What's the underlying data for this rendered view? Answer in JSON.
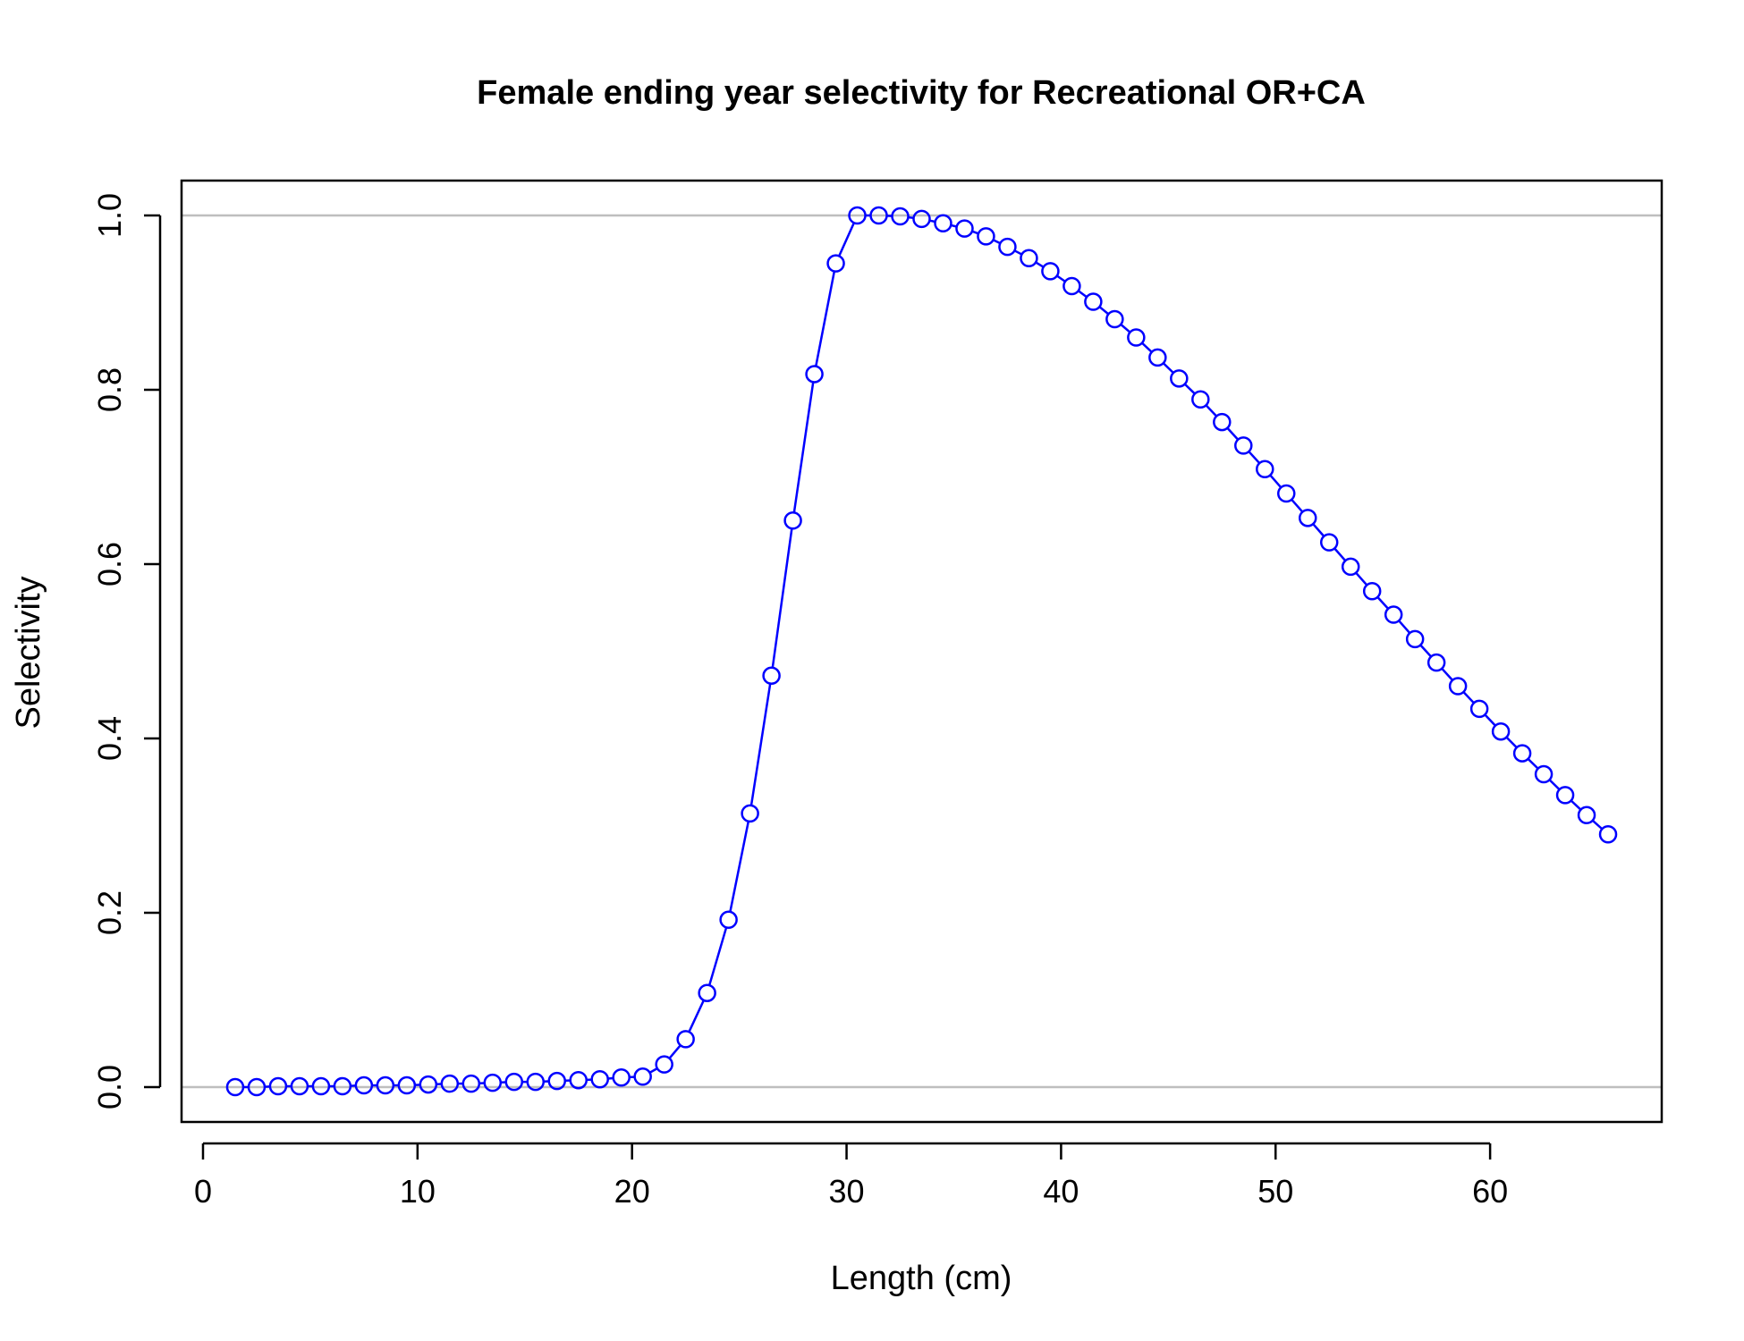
{
  "chart_data": {
    "type": "line",
    "title": "Female ending year selectivity for Recreational OR+CA",
    "xlabel": "Length (cm)",
    "ylabel": "Selectivity",
    "xlim": [
      -1,
      68
    ],
    "ylim": [
      -0.04,
      1.04
    ],
    "x_ticks": [
      0,
      10,
      20,
      30,
      40,
      50,
      60
    ],
    "x_tick_labels": [
      "0",
      "10",
      "20",
      "30",
      "40",
      "50",
      "60"
    ],
    "y_ticks": [
      0,
      0.2,
      0.4,
      0.6,
      0.8,
      1.0
    ],
    "y_tick_labels": [
      "0.0",
      "0.2",
      "0.4",
      "0.6",
      "0.8",
      "1.0"
    ],
    "reference_lines_y": [
      0,
      1
    ],
    "grid": false,
    "colors": {
      "series": "#0000ff",
      "reference": "#bebebe",
      "axis": "#000000"
    },
    "series": [
      {
        "marker": "open-circle",
        "x": [
          1.5,
          2.5,
          3.5,
          4.5,
          5.5,
          6.5,
          7.5,
          8.5,
          9.5,
          10.5,
          11.5,
          12.5,
          13.5,
          14.5,
          15.5,
          16.5,
          17.5,
          18.5,
          19.5,
          20.5,
          21.5,
          22.5,
          23.5,
          24.5,
          25.5,
          26.5,
          27.5,
          28.5,
          29.5,
          30.5,
          31.5,
          32.5,
          33.5,
          34.5,
          35.5,
          36.5,
          37.5,
          38.5,
          39.5,
          40.5,
          41.5,
          42.5,
          43.5,
          44.5,
          45.5,
          46.5,
          47.5,
          48.5,
          49.5,
          50.5,
          51.5,
          52.5,
          53.5,
          54.5,
          55.5,
          56.5,
          57.5,
          58.5,
          59.5,
          60.5,
          61.5,
          62.5,
          63.5,
          64.5,
          65.5
        ],
        "y": [
          0.0,
          0.0,
          0.001,
          0.001,
          0.001,
          0.001,
          0.002,
          0.002,
          0.002,
          0.003,
          0.004,
          0.004,
          0.005,
          0.006,
          0.006,
          0.007,
          0.008,
          0.009,
          0.011,
          0.012,
          0.026,
          0.055,
          0.108,
          0.192,
          0.314,
          0.472,
          0.65,
          0.818,
          0.945,
          1.0,
          1.0,
          0.999,
          0.996,
          0.991,
          0.985,
          0.976,
          0.964,
          0.951,
          0.936,
          0.919,
          0.901,
          0.881,
          0.86,
          0.837,
          0.813,
          0.789,
          0.763,
          0.736,
          0.709,
          0.681,
          0.653,
          0.625,
          0.597,
          0.569,
          0.542,
          0.514,
          0.487,
          0.46,
          0.434,
          0.408,
          0.383,
          0.359,
          0.335,
          0.312,
          0.29
        ]
      }
    ]
  }
}
